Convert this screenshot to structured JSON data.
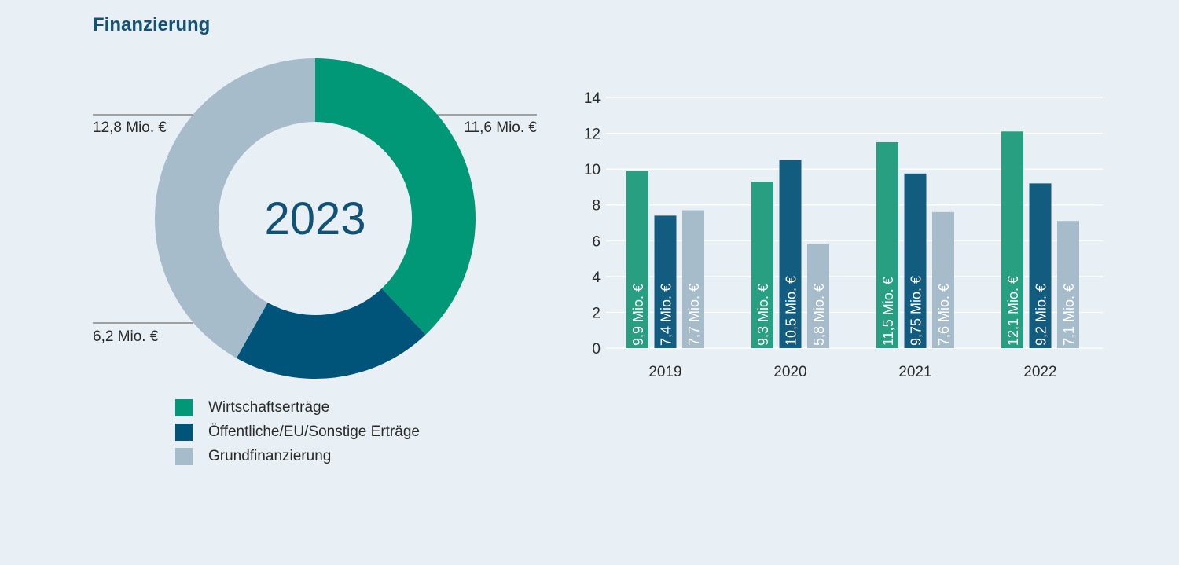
{
  "title": "Finanzierung",
  "colors": {
    "wirtschaft": "#009877",
    "oeffentlich": "#005379",
    "grund": "#a7bccb",
    "bar_wirtschaft": "#279f80",
    "bar_oeffentlich": "#125c80"
  },
  "chart_data": [
    {
      "type": "pie",
      "center_label": "2023",
      "slices": [
        {
          "name": "Wirtschaftserträge",
          "value": 11.6,
          "label": "11,6 Mio. €"
        },
        {
          "name": "Öffentliche/EU/Sonstige Erträge",
          "value": 6.2,
          "label": "6,2 Mio. €"
        },
        {
          "name": "Grundfinanzierung",
          "value": 12.8,
          "label": "12,8 Mio. €"
        }
      ],
      "legend": [
        {
          "label": "Wirtschaftserträge",
          "color": "#009877"
        },
        {
          "label": "Öffentliche/EU/Sonstige Erträge",
          "color": "#005379"
        },
        {
          "label": "Grundfinanzierung",
          "color": "#a7bccb"
        }
      ]
    },
    {
      "type": "bar",
      "categories": [
        "2019",
        "2020",
        "2021",
        "2022"
      ],
      "ylim": [
        0,
        14
      ],
      "yticks": [
        "0",
        "2",
        "4",
        "6",
        "8",
        "10",
        "12",
        "14"
      ],
      "grid": true,
      "series": [
        {
          "name": "Wirtschaftserträge",
          "values": [
            9.9,
            9.3,
            11.5,
            12.1
          ],
          "labels": [
            "9,9 Mio. €",
            "9,3 Mio. €",
            "11,5 Mio. €",
            "12,1 Mio. €"
          ]
        },
        {
          "name": "Öffentliche/EU/Sonstige Erträge",
          "values": [
            7.4,
            10.5,
            9.75,
            9.2
          ],
          "labels": [
            "7,4 Mio. €",
            "10,5 Mio. €",
            "9,75 Mio. €",
            "9,2 Mio. €"
          ]
        },
        {
          "name": "Grundfinanzierung",
          "values": [
            7.7,
            5.8,
            7.6,
            7.1
          ],
          "labels": [
            "7,7 Mio. €",
            "5,8 Mio. €",
            "7,6 Mio. €",
            "7,1 Mio. €"
          ]
        }
      ]
    }
  ]
}
